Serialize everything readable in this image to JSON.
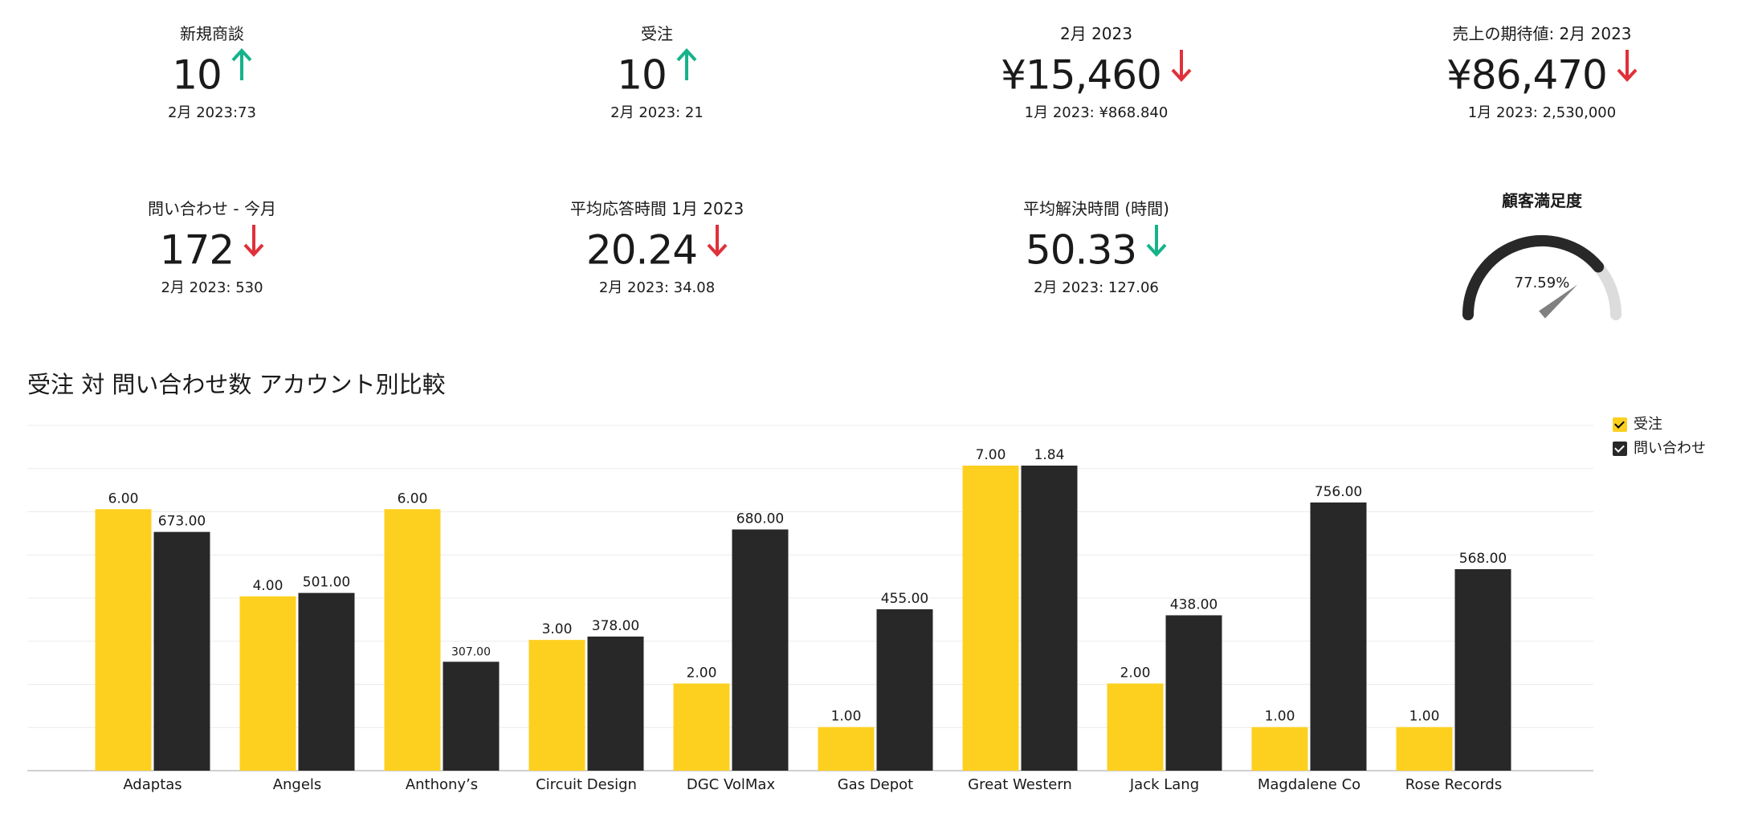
{
  "kpis": [
    {
      "title": "新規商談",
      "value": "10",
      "trend": "up",
      "sub": "2月 2023:73"
    },
    {
      "title": "受注",
      "value": "10",
      "trend": "up",
      "sub": "2月 2023: 21"
    },
    {
      "title": "2月  2023",
      "value": "¥15,460",
      "trend": "down",
      "sub": "1月 2023: ¥868.840"
    },
    {
      "title": "売上の期待値: 2月  2023",
      "value": "¥86,470",
      "trend": "down",
      "sub": "1月 2023: 2,530,000"
    },
    {
      "title": "問い合わせ - 今月",
      "value": "172",
      "trend": "down",
      "sub": "2月 2023: 530"
    },
    {
      "title": "平均応答時間 1月 2023",
      "value": "20.24",
      "trend": "down",
      "sub": "2月 2023: 34.08"
    },
    {
      "title": "平均解決時間 (時間)",
      "value": "50.33",
      "trend": "down-good",
      "sub": "2月 2023: 127.06"
    }
  ],
  "gauge": {
    "title": "顧客満足度",
    "value_label": "77.59%",
    "fraction": 0.7759
  },
  "colors": {
    "up": "#16b38a",
    "down": "#e0303a",
    "series_a": "#fdd020",
    "series_b": "#282828",
    "gauge_fill": "#282828",
    "gauge_track": "#dcdcdc",
    "needle": "#808080"
  },
  "chart_data": {
    "type": "bar",
    "title": "受注 対 問い合わせ数 アカウント別比較",
    "categories": [
      "Adaptas",
      "Angels",
      "Anthony’s",
      "Circuit Design",
      "DGC VolMax",
      "Gas Depot",
      "Great Western",
      "Jack Lang",
      "Magdalene Co",
      "Rose Records"
    ],
    "series": [
      {
        "name": "受注",
        "values": [
          6,
          4,
          6,
          3,
          2,
          1,
          7,
          2,
          1,
          1
        ],
        "labels": [
          "6.00",
          "4.00",
          "6.00",
          "3.00",
          "2.00",
          "1.00",
          "7.00",
          "2.00",
          "1.00",
          "1.00"
        ]
      },
      {
        "name": "問い合わせ",
        "values": [
          673,
          501,
          307,
          378,
          680,
          455,
          1.84,
          438,
          756,
          568
        ],
        "labels": [
          "673.00",
          "501.00",
          "307.00",
          "378.00",
          "680.00",
          "455.00",
          "1.84",
          "438.00",
          "756.00",
          "568.00"
        ]
      }
    ],
    "legend_position": "top-right",
    "grid": true
  }
}
